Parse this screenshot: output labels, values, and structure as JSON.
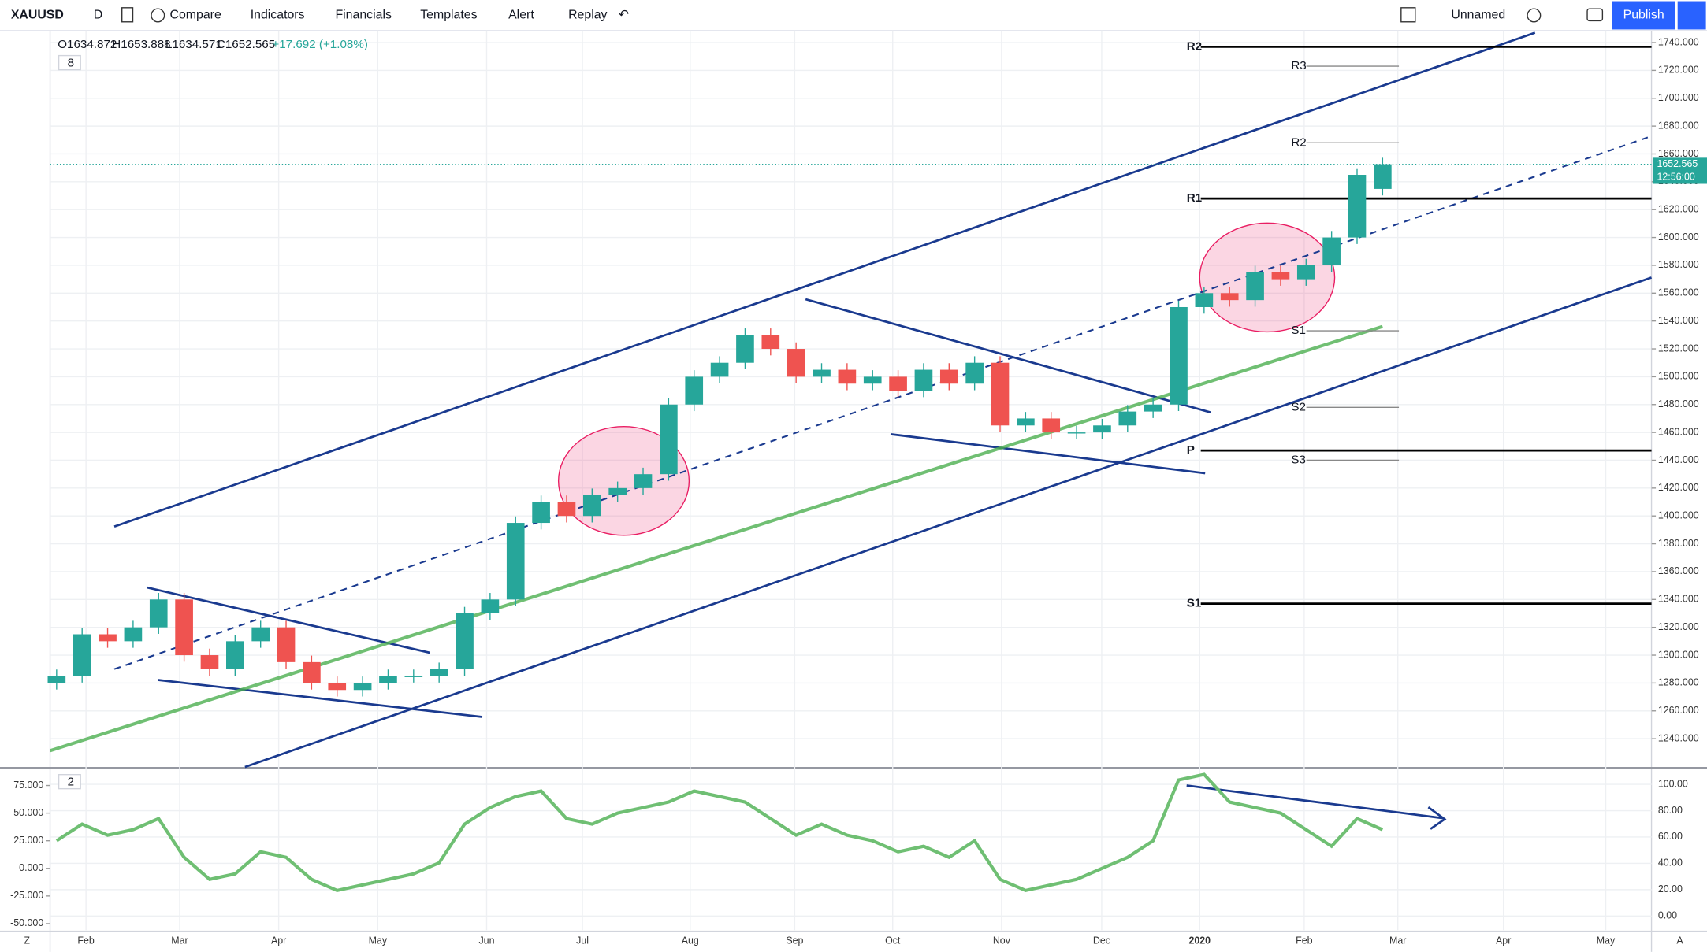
{
  "toolbar": {
    "symbol": "XAUUSD",
    "interval": "D",
    "compare": "Compare",
    "indicators": "Indicators",
    "financials": "Financials",
    "templates": "Templates",
    "alert": "Alert",
    "replay": "Replay",
    "layout": "Unnamed",
    "publish": "Publish"
  },
  "legend": {
    "open": "O1634.872",
    "high": "H1653.888",
    "low": "L1634.571",
    "close": "C1652.565",
    "change": "+17.692 (+1.08%)",
    "main_count": "8",
    "osc_count": "2"
  },
  "corner": {
    "left": "Z",
    "right": "A"
  },
  "chart_data": {
    "type": "candlestick",
    "open": [
      1280,
      1285,
      1315,
      1310,
      1320,
      1340,
      1300,
      1290,
      1310,
      1320,
      1295,
      1280,
      1275,
      1280,
      1285,
      1285,
      1290,
      1330,
      1340,
      1395,
      1410,
      1400,
      1415,
      1420,
      1430,
      1480,
      1500,
      1510,
      1530,
      1520,
      1500,
      1505,
      1495,
      1500,
      1490,
      1505,
      1495,
      1510,
      1465,
      1470,
      1460,
      1460,
      1465,
      1475,
      1480,
      1550,
      1560,
      1555,
      1575,
      1570,
      1580,
      1600,
      1634.872
    ],
    "close": [
      1285,
      1315,
      1310,
      1320,
      1340,
      1300,
      1290,
      1310,
      1320,
      1295,
      1280,
      1275,
      1280,
      1285,
      1285,
      1290,
      1330,
      1340,
      1395,
      1410,
      1400,
      1415,
      1420,
      1430,
      1480,
      1500,
      1510,
      1530,
      1520,
      1500,
      1505,
      1495,
      1500,
      1490,
      1505,
      1495,
      1510,
      1465,
      1470,
      1460,
      1460,
      1465,
      1475,
      1480,
      1550,
      1560,
      1555,
      1575,
      1570,
      1580,
      1600,
      1645,
      1652.565
    ],
    "up_color": "#26a69a",
    "down_color": "#ef5350",
    "ylim": [
      1219.7,
      1748.6
    ],
    "yticks": [
      {
        "value": 1240,
        "label": "1240.000"
      },
      {
        "value": 1260,
        "label": "1260.000"
      },
      {
        "value": 1280,
        "label": "1280.000"
      },
      {
        "value": 1300,
        "label": "1300.000"
      },
      {
        "value": 1320,
        "label": "1320.000"
      },
      {
        "value": 1340,
        "label": "1340.000"
      },
      {
        "value": 1360,
        "label": "1360.000"
      },
      {
        "value": 1380,
        "label": "1380.000"
      },
      {
        "value": 1400,
        "label": "1400.000"
      },
      {
        "value": 1420,
        "label": "1420.000"
      },
      {
        "value": 1440,
        "label": "1440.000"
      },
      {
        "value": 1460,
        "label": "1460.000"
      },
      {
        "value": 1480,
        "label": "1480.000"
      },
      {
        "value": 1500,
        "label": "1500.000"
      },
      {
        "value": 1520,
        "label": "1520.000"
      },
      {
        "value": 1540,
        "label": "1540.000"
      },
      {
        "value": 1560,
        "label": "1560.000"
      },
      {
        "value": 1580,
        "label": "1580.000"
      },
      {
        "value": 1600,
        "label": "1600.000"
      },
      {
        "value": 1620,
        "label": "1620.000"
      },
      {
        "value": 1640,
        "label": "1640.000"
      },
      {
        "value": 1660,
        "label": "1660.000"
      },
      {
        "value": 1680,
        "label": "1680.000"
      },
      {
        "value": 1700,
        "label": "1700.000"
      },
      {
        "value": 1720,
        "label": "1720.000"
      },
      {
        "value": 1740,
        "label": "1740.000"
      }
    ],
    "last_price": {
      "value": 1652.565,
      "label": "1652.565",
      "countdown": "12:56:00"
    },
    "pivots": [
      {
        "label": "R2",
        "level": 1737
      },
      {
        "label": "R3",
        "level": 1723
      },
      {
        "label": "R2",
        "level": 1668
      },
      {
        "label": "R1",
        "level": 1628
      },
      {
        "label": "S1",
        "level": 1533
      },
      {
        "label": "S2",
        "level": 1478
      },
      {
        "label": "P",
        "level": 1447
      },
      {
        "label": "S3",
        "level": 1440
      },
      {
        "label": "S1",
        "level": 1337
      }
    ],
    "months": [
      "Feb",
      "Mar",
      "Apr",
      "May",
      "Jun",
      "Jul",
      "Aug",
      "Sep",
      "Oct",
      "Nov",
      "Dec",
      "2020",
      "Feb",
      "Mar",
      "Apr",
      "May"
    ],
    "oscillator": {
      "color": "#6fbf73",
      "values": [
        25,
        40,
        30,
        35,
        45,
        10,
        -10,
        -5,
        15,
        10,
        -10,
        -20,
        -15,
        -10,
        -5,
        5,
        40,
        55,
        65,
        70,
        45,
        40,
        50,
        55,
        60,
        70,
        65,
        60,
        45,
        30,
        40,
        30,
        25,
        15,
        20,
        10,
        25,
        -10,
        -20,
        -15,
        -10,
        0,
        10,
        25,
        80,
        85,
        60,
        55,
        50,
        35,
        20,
        45,
        35
      ],
      "ylim": [
        -55.9,
        88.8
      ],
      "yticks": [
        {
          "value": 75,
          "label": "75.000"
        },
        {
          "value": 50,
          "label": "50.000"
        },
        {
          "value": 25,
          "label": "25.000"
        },
        {
          "value": 0,
          "label": "0.000"
        },
        {
          "value": -25,
          "label": "-25.000"
        },
        {
          "value": -50,
          "label": "-50.000"
        }
      ],
      "y2lim": [
        -10.7,
        110.7
      ],
      "y2ticks": [
        {
          "value": 100,
          "label": "100.00"
        },
        {
          "value": 80,
          "label": "80.00"
        },
        {
          "value": 60,
          "label": "60.00"
        },
        {
          "value": 40,
          "label": "40.00"
        },
        {
          "value": 20,
          "label": "20.00"
        },
        {
          "value": 0,
          "label": "0.00"
        }
      ]
    }
  }
}
